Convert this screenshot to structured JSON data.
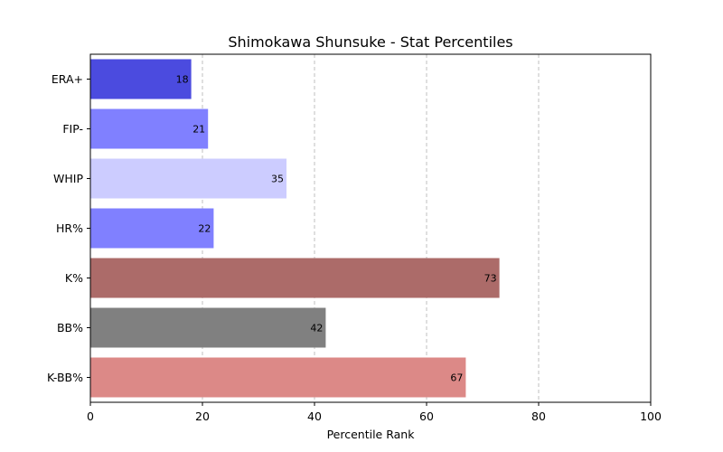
{
  "chart_data": {
    "type": "bar",
    "orientation": "horizontal",
    "title": "Shimokawa Shunsuke - Stat Percentiles",
    "xlabel": "Percentile Rank",
    "ylabel": "",
    "xlim": [
      0,
      100
    ],
    "xticks": [
      0,
      20,
      40,
      60,
      80,
      100
    ],
    "grid": "x-dashed",
    "categories": [
      "ERA+",
      "FIP-",
      "WHIP",
      "HR%",
      "K%",
      "BB%",
      "K-BB%"
    ],
    "values": [
      18,
      21,
      35,
      22,
      73,
      42,
      67
    ],
    "colors": [
      "#4b4bdf",
      "#8080ff",
      "#ccccff",
      "#8080ff",
      "#ac6b69",
      "#808080",
      "#dc8987"
    ]
  }
}
